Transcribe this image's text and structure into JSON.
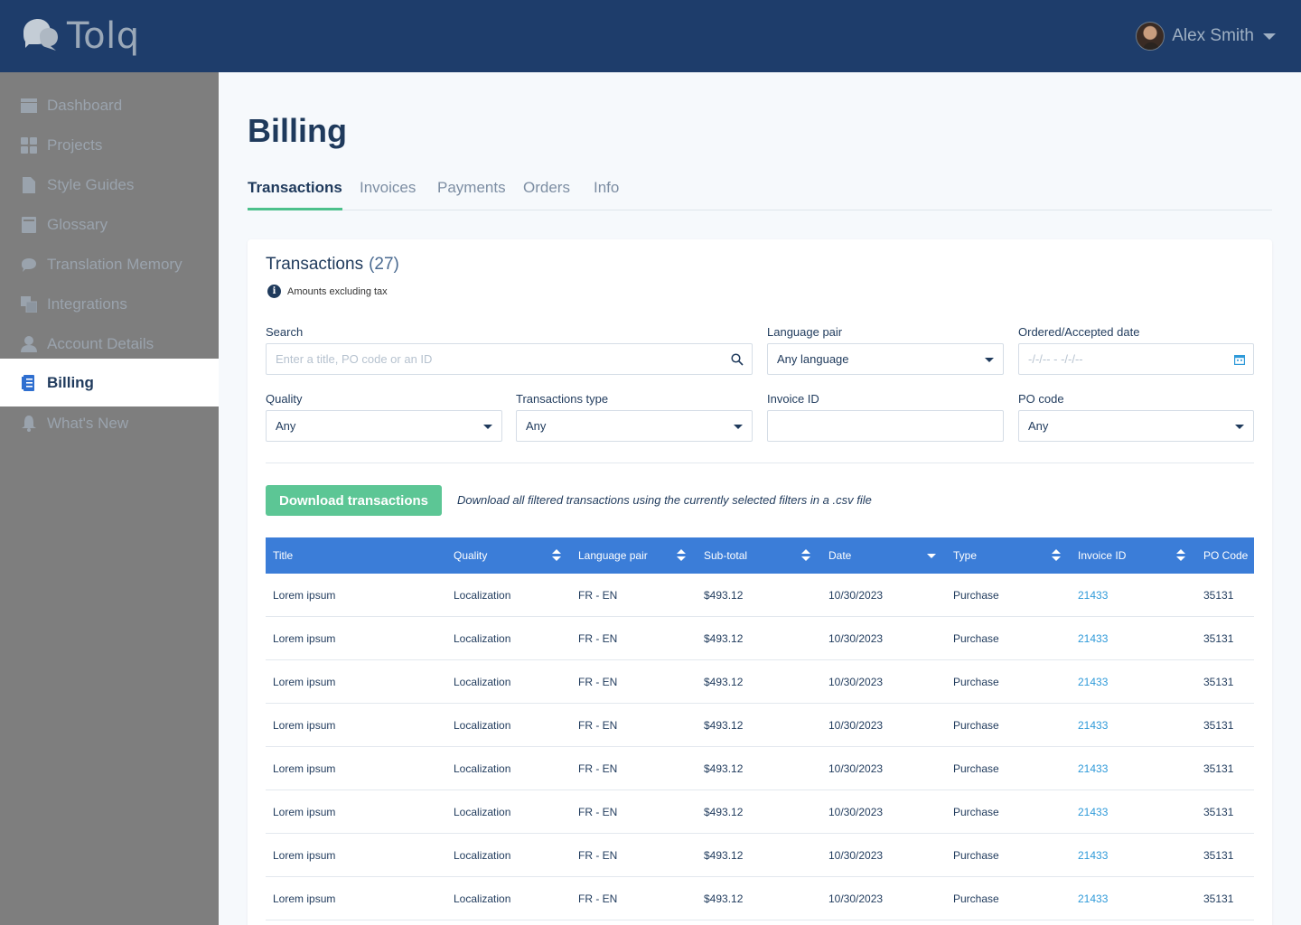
{
  "brand": {
    "name": "Tolq"
  },
  "user": {
    "name": "Alex Smith"
  },
  "sidebar": {
    "items": [
      {
        "label": "Dashboard",
        "icon": "dashboard-icon"
      },
      {
        "label": "Projects",
        "icon": "projects-icon"
      },
      {
        "label": "Style Guides",
        "icon": "document-icon"
      },
      {
        "label": "Glossary",
        "icon": "book-icon"
      },
      {
        "label": "Translation Memory",
        "icon": "memory-icon"
      },
      {
        "label": "Integrations",
        "icon": "integrations-icon"
      },
      {
        "label": "Account Details",
        "icon": "user-icon"
      },
      {
        "label": "Billing",
        "icon": "billing-icon",
        "active": true
      },
      {
        "label": "What's New",
        "icon": "bell-icon"
      }
    ]
  },
  "page": {
    "title": "Billing"
  },
  "tabs": [
    {
      "label": "Transactions",
      "active": true
    },
    {
      "label": "Invoices"
    },
    {
      "label": "Payments"
    },
    {
      "label": "Orders"
    },
    {
      "label": "Info"
    }
  ],
  "transactions": {
    "title": "Transactions",
    "count": "(27)",
    "note": "Amounts excluding tax"
  },
  "filters": {
    "search": {
      "label": "Search",
      "placeholder": "Enter a title, PO code or an ID"
    },
    "language_pair": {
      "label": "Language pair",
      "value": "Any language"
    },
    "date": {
      "label": "Ordered/Accepted date",
      "placeholder": "-/-/-- - -/-/--"
    },
    "quality": {
      "label": "Quality",
      "value": "Any"
    },
    "transactions_type": {
      "label": "Transactions type",
      "value": "Any"
    },
    "invoice_id": {
      "label": "Invoice ID",
      "value": ""
    },
    "po_code": {
      "label": "PO code",
      "value": "Any"
    }
  },
  "download": {
    "button_label": "Download transactions",
    "note": "Download all filtered transactions using the currently selected filters in a .csv file"
  },
  "table": {
    "columns": [
      "Title",
      "Quality",
      "Language pair",
      "Sub-total",
      "Date",
      "Type",
      "Invoice ID",
      "PO Code"
    ],
    "rows": [
      [
        "Lorem ipsum",
        "Localization",
        "FR - EN",
        "$493.12",
        "10/30/2023",
        "Purchase",
        "21433",
        "35131"
      ],
      [
        "Lorem ipsum",
        "Localization",
        "FR - EN",
        "$493.12",
        "10/30/2023",
        "Purchase",
        "21433",
        "35131"
      ],
      [
        "Lorem ipsum",
        "Localization",
        "FR - EN",
        "$493.12",
        "10/30/2023",
        "Purchase",
        "21433",
        "35131"
      ],
      [
        "Lorem ipsum",
        "Localization",
        "FR - EN",
        "$493.12",
        "10/30/2023",
        "Purchase",
        "21433",
        "35131"
      ],
      [
        "Lorem ipsum",
        "Localization",
        "FR - EN",
        "$493.12",
        "10/30/2023",
        "Purchase",
        "21433",
        "35131"
      ],
      [
        "Lorem ipsum",
        "Localization",
        "FR - EN",
        "$493.12",
        "10/30/2023",
        "Purchase",
        "21433",
        "35131"
      ],
      [
        "Lorem ipsum",
        "Localization",
        "FR - EN",
        "$493.12",
        "10/30/2023",
        "Purchase",
        "21433",
        "35131"
      ],
      [
        "Lorem ipsum",
        "Localization",
        "FR - EN",
        "$493.12",
        "10/30/2023",
        "Purchase",
        "21433",
        "35131"
      ]
    ]
  },
  "colors": {
    "header": "#1e3d6b",
    "accent_green": "#5cc695",
    "table_header": "#3b7dd8",
    "link": "#2f9ad9"
  }
}
